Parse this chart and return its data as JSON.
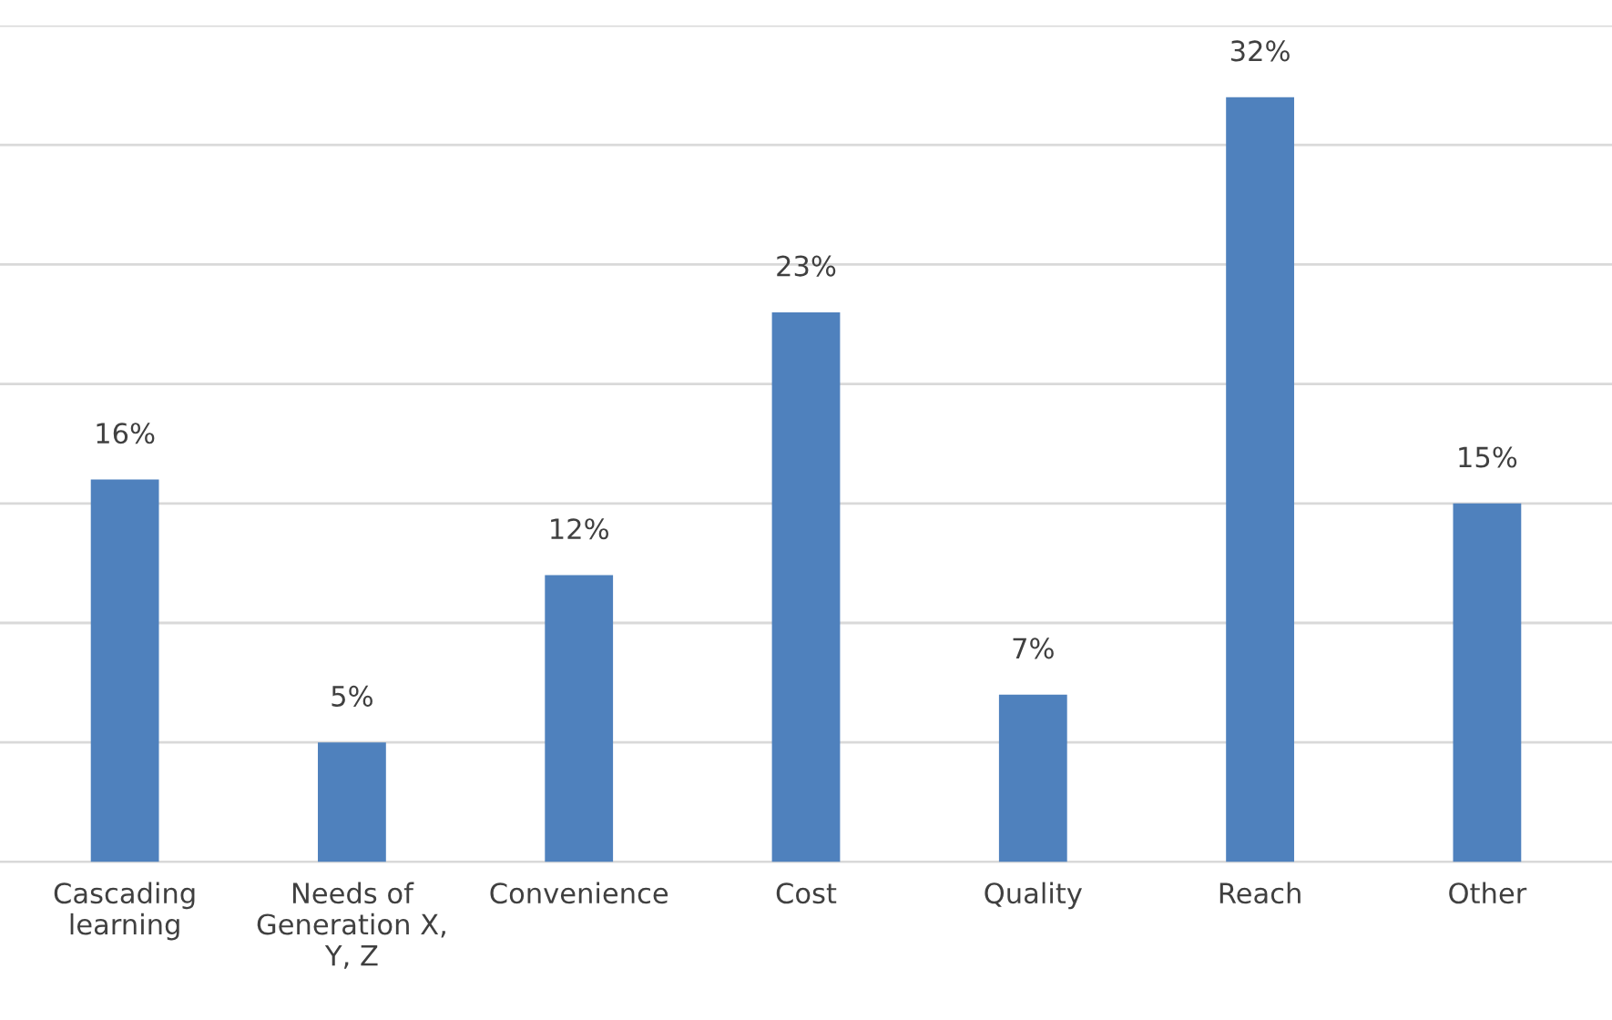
{
  "chart_data": {
    "type": "bar",
    "categories": [
      "Cascading\nlearning",
      "Needs of\nGeneration X,\nY, Z",
      "Convenience",
      "Cost",
      "Quality",
      "Reach",
      "Other"
    ],
    "values": [
      16,
      5,
      12,
      23,
      7,
      32,
      15
    ],
    "value_labels": [
      "16%",
      "5%",
      "12%",
      "23%",
      "7%",
      "32%",
      "15%"
    ],
    "color": "#4f81bd",
    "ylim": [
      0,
      35
    ],
    "yticks": [
      {
        "value": 0,
        "label": null
      },
      {
        "value": 5,
        "label": null
      },
      {
        "value": 10,
        "label": null
      },
      {
        "value": 15,
        "label": null
      },
      {
        "value": 20,
        "label": null
      },
      {
        "value": 25,
        "label": null
      },
      {
        "value": 30,
        "label": null
      },
      {
        "value": 35,
        "label": null
      }
    ],
    "grid": "y",
    "tick_labels": "x"
  }
}
